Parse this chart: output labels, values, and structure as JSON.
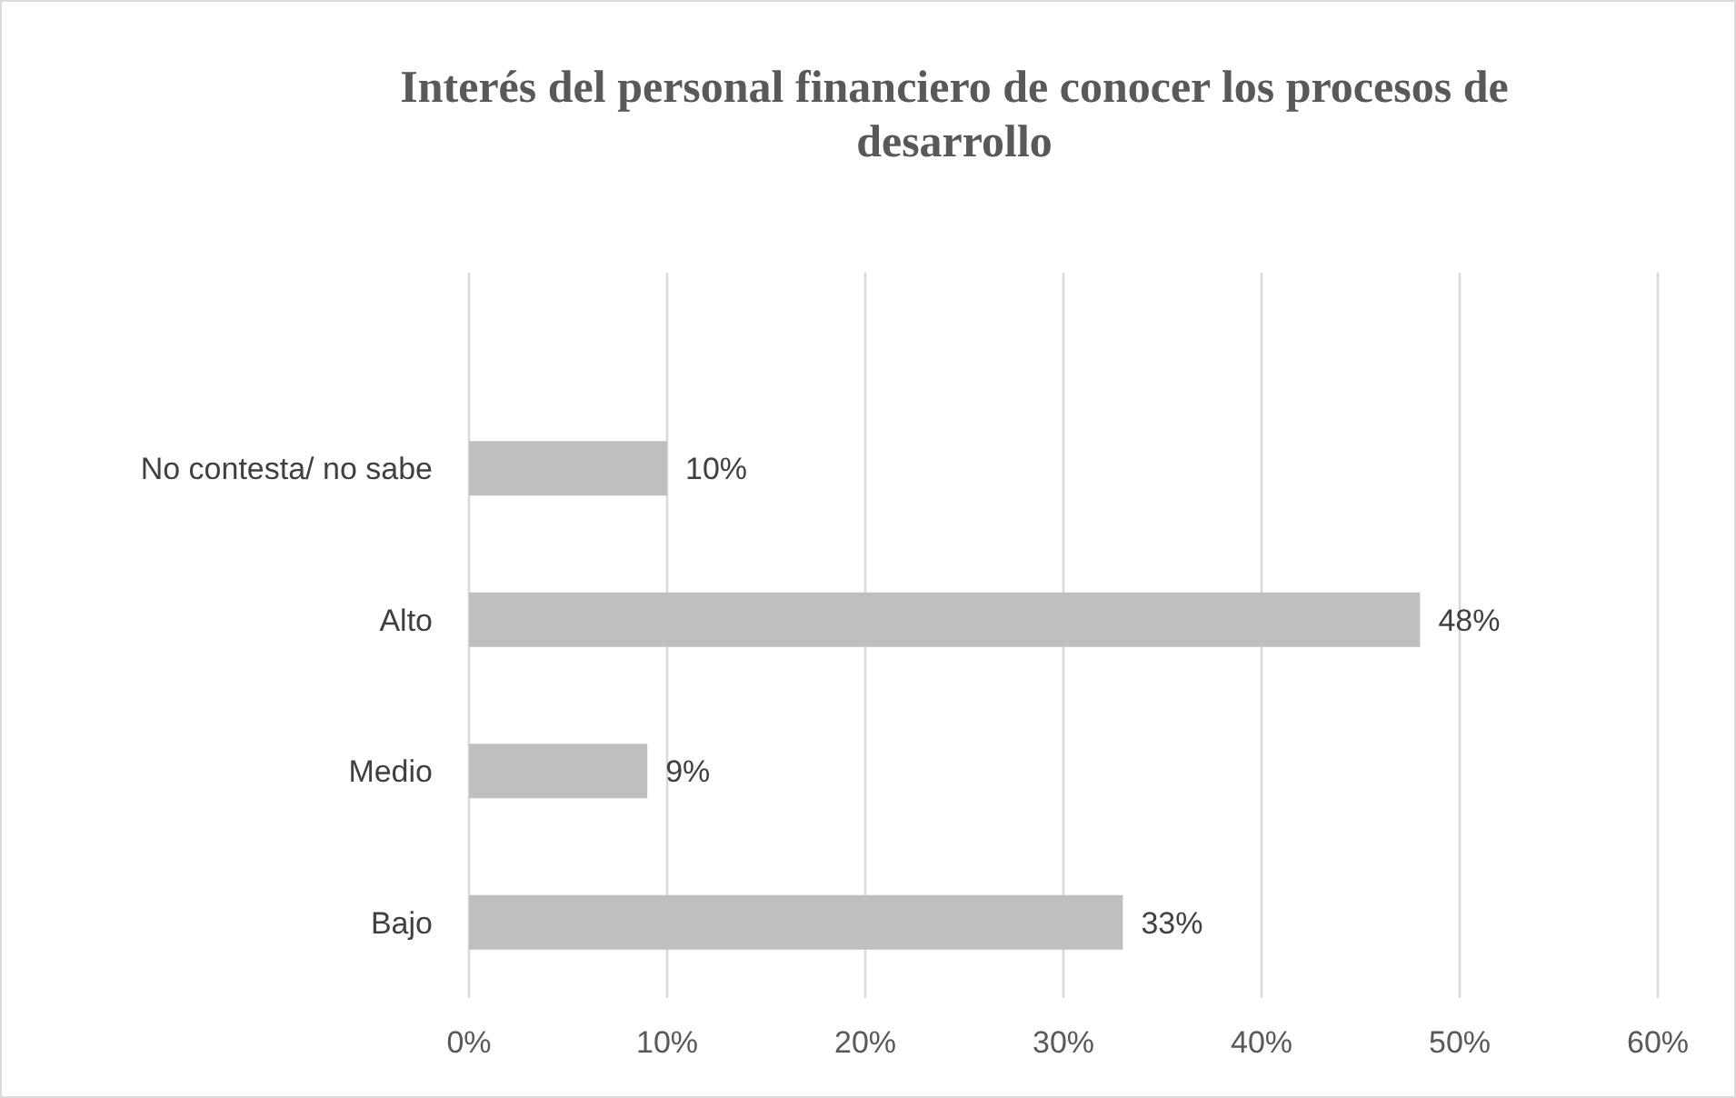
{
  "chart_data": {
    "type": "bar",
    "orientation": "horizontal",
    "title": "Interés del personal financiero de conocer los procesos de desarrollo",
    "categories": [
      "No contesta/ no sabe",
      "Alto",
      "Medio",
      "Bajo"
    ],
    "values": [
      10,
      48,
      9,
      33
    ],
    "value_labels": [
      "10%",
      "48%",
      "9%",
      "33%"
    ],
    "color": "#bfbfbf",
    "xlim": [
      0,
      60
    ],
    "xticks": [
      {
        "value": 0,
        "label": "0%"
      },
      {
        "value": 10,
        "label": "10%"
      },
      {
        "value": 20,
        "label": "20%"
      },
      {
        "value": 30,
        "label": "30%"
      },
      {
        "value": 40,
        "label": "40%"
      },
      {
        "value": 50,
        "label": "50%"
      },
      {
        "value": 60,
        "label": "60%"
      }
    ],
    "grid": "x"
  }
}
